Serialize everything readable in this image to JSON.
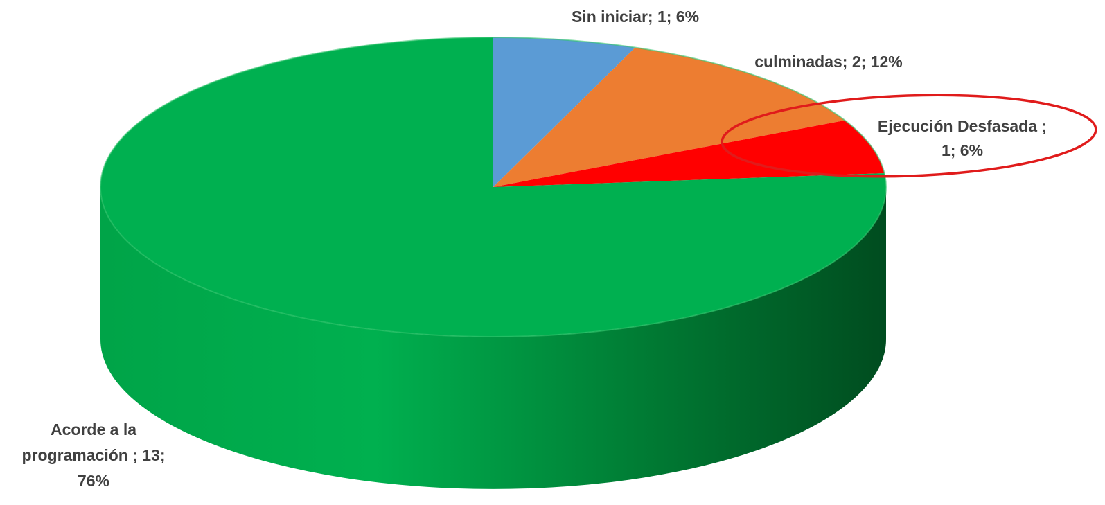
{
  "chart_data": {
    "type": "pie",
    "style": "3d",
    "title": "",
    "slices": [
      {
        "label": "Sin iniciar",
        "value": 1,
        "percent": 6,
        "color": "#5B9BD5",
        "display": [
          "Sin iniciar; 1; 6%"
        ]
      },
      {
        "label": "culminadas",
        "value": 2,
        "percent": 12,
        "color": "#ED7D31",
        "display": [
          "culminadas;  2; 12%"
        ]
      },
      {
        "label": "Ejecución Desfasada",
        "value": 1,
        "percent": 6,
        "color": "#FF0000",
        "display": [
          "Ejecución  Desfasada ;",
          "1; 6%"
        ],
        "highlighted": true
      },
      {
        "label": "Acorde a la programación",
        "value": 13,
        "percent": 76,
        "color": "#00B050",
        "side_color": "#00953F",
        "display": [
          "Acorde a la",
          "programación  ; 13;",
          "76%"
        ]
      }
    ],
    "highlight": {
      "target": "Ejecución Desfasada",
      "shape": "ellipse",
      "color": "#E01B1B"
    },
    "legend": "none"
  }
}
